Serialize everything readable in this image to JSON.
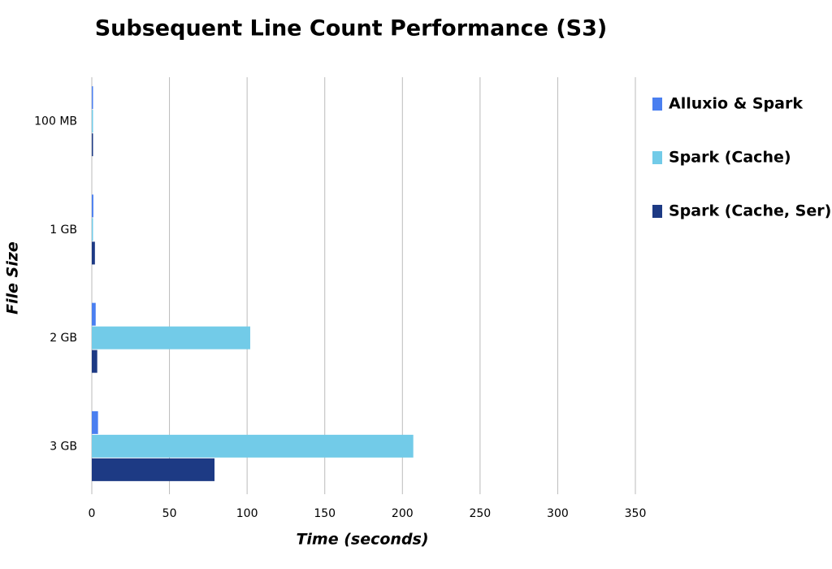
{
  "chart_data": {
    "type": "bar",
    "orientation": "horizontal",
    "title": "Subsequent Line Count Performance (S3)",
    "x_label": "Time (seconds)",
    "y_label": "File Size",
    "categories": [
      "100 MB",
      "1 GB",
      "2 GB",
      "3 GB"
    ],
    "series": [
      {
        "name": "Alluxio & Spark",
        "color": "#4a7ff0",
        "values": [
          0.5,
          1,
          2.5,
          4
        ]
      },
      {
        "name": "Spark (Cache)",
        "color": "#72cbe8",
        "values": [
          0.3,
          0.5,
          102,
          207
        ]
      },
      {
        "name": "Spark (Cache, Ser)",
        "color": "#1d3a84",
        "values": [
          0.7,
          2,
          3.5,
          79
        ]
      }
    ],
    "xlim": [
      0,
      350
    ],
    "xticks": [
      0,
      50,
      100,
      150,
      200,
      250,
      300,
      350
    ],
    "grid": true
  }
}
